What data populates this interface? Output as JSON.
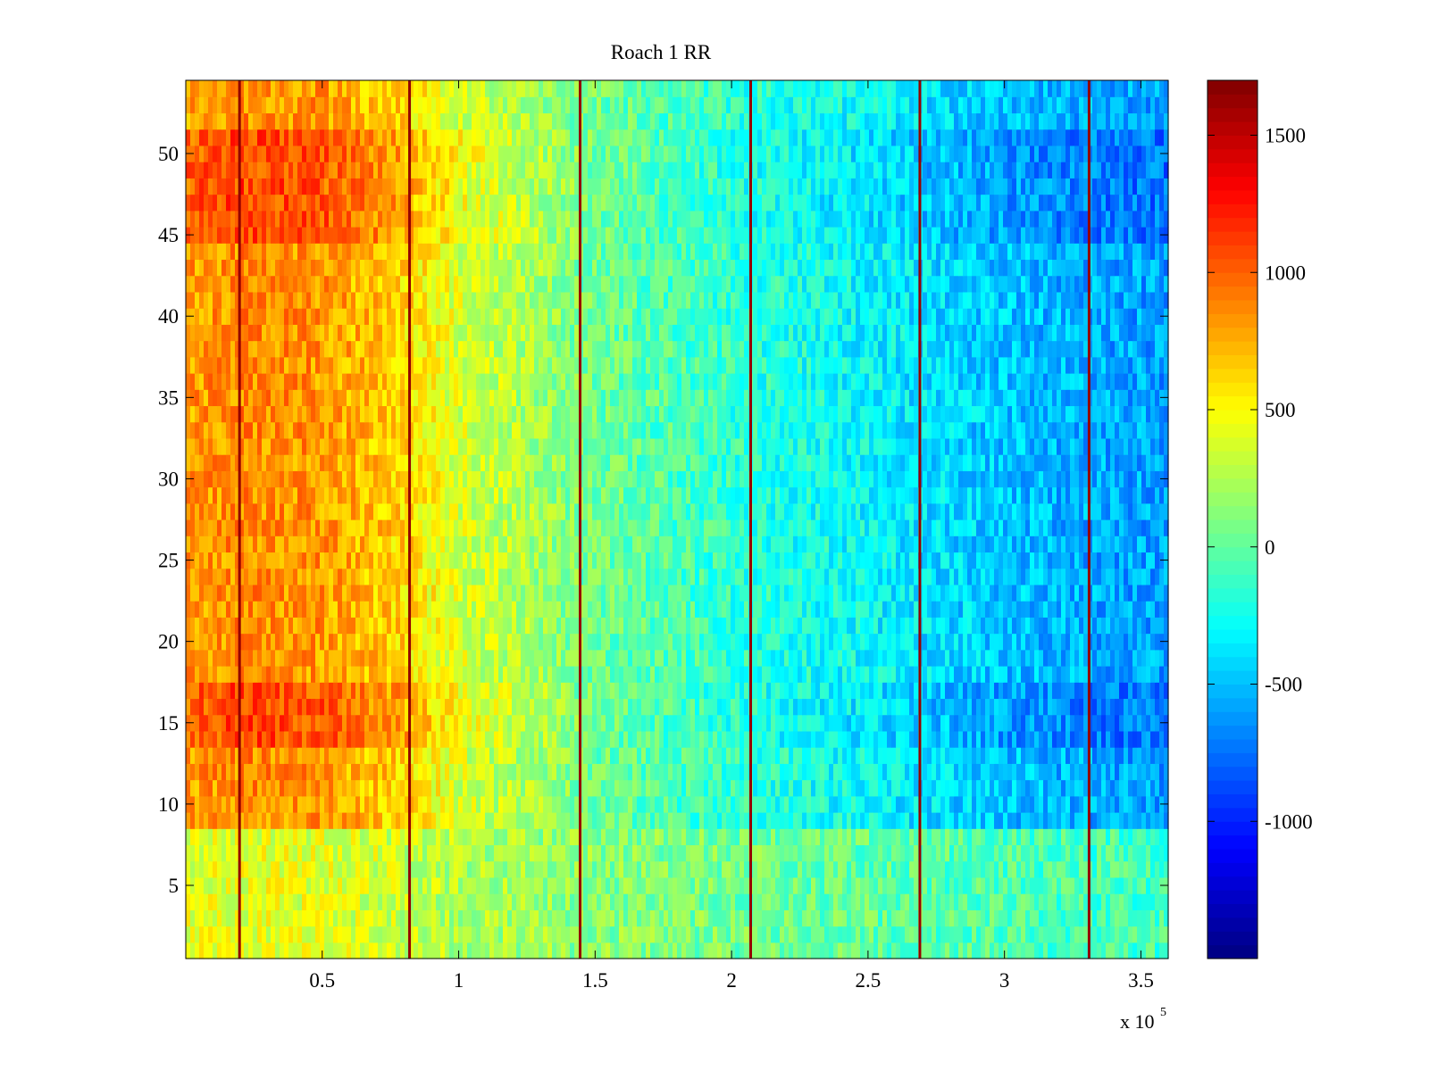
{
  "chart_data": {
    "type": "heatmap",
    "title": "Roach 1 RR",
    "xlabel": "",
    "ylabel": "",
    "x_exponent_label": "x 10",
    "x_exponent_power": "5",
    "xlim": [
      0,
      3.6
    ],
    "ylim": [
      0.5,
      54.5
    ],
    "x_ticks": [
      0.5,
      1,
      1.5,
      2,
      2.5,
      3,
      3.5
    ],
    "x_tick_labels": [
      "0.5",
      "1",
      "1.5",
      "2",
      "2.5",
      "3",
      "3.5"
    ],
    "y_ticks": [
      5,
      10,
      15,
      20,
      25,
      30,
      35,
      40,
      45,
      50
    ],
    "y_tick_labels": [
      "5",
      "10",
      "15",
      "20",
      "25",
      "30",
      "35",
      "40",
      "45",
      "50"
    ],
    "rows": 54,
    "colormap": "jet",
    "clim": [
      -1500,
      1700
    ],
    "colorbar_ticks": [
      1500,
      1000,
      500,
      0,
      -500,
      -1000
    ],
    "colorbar_tick_labels": [
      "1500",
      "1000",
      "500",
      "0",
      "-500",
      "-1000"
    ],
    "column_means": [
      {
        "x": 0.0,
        "value": 800
      },
      {
        "x": 0.2,
        "value": 870
      },
      {
        "x": 0.5,
        "value": 820
      },
      {
        "x": 0.8,
        "value": 620
      },
      {
        "x": 1.0,
        "value": 380
      },
      {
        "x": 1.3,
        "value": 200
      },
      {
        "x": 1.45,
        "value": 70
      },
      {
        "x": 1.8,
        "value": -70
      },
      {
        "x": 2.06,
        "value": -170
      },
      {
        "x": 2.5,
        "value": -300
      },
      {
        "x": 2.69,
        "value": -370
      },
      {
        "x": 3.0,
        "value": -480
      },
      {
        "x": 3.31,
        "value": -560
      },
      {
        "x": 3.6,
        "value": -600
      }
    ],
    "row_bands": [
      {
        "rows": [
          1,
          8
        ],
        "note": "compressed range, near 0..400"
      },
      {
        "rows": [
          14,
          17
        ],
        "note": "high amplitude"
      },
      {
        "rows": [
          45,
          51
        ],
        "note": "high amplitude"
      }
    ],
    "vertical_lines_x": [
      0.197,
      0.82,
      1.445,
      2.07,
      2.69,
      3.31
    ],
    "vertical_line_value": 1700
  }
}
